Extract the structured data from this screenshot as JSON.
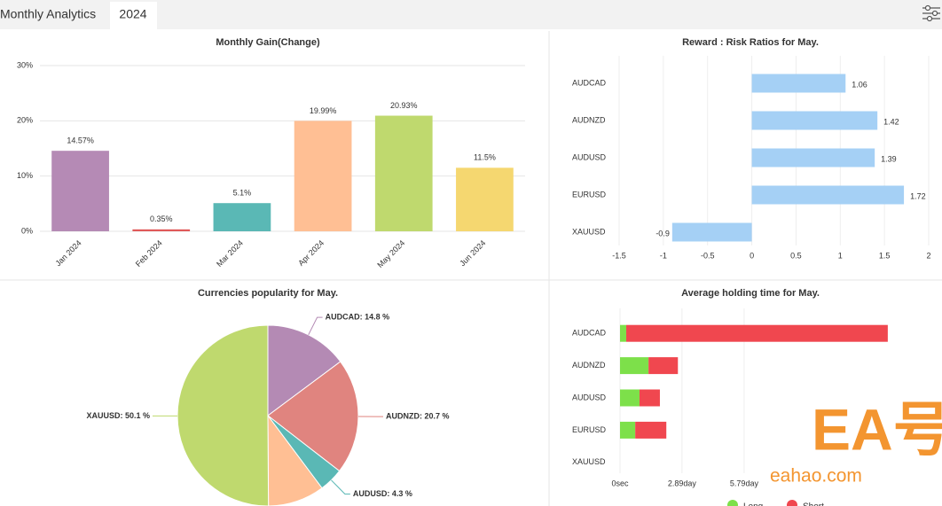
{
  "header": {
    "title": "Monthly Analytics",
    "tab": "2024"
  },
  "watermark": {
    "logo": "EA号",
    "site": "eahao.com"
  },
  "chart_data": [
    {
      "type": "bar",
      "title": "Monthly Gain(Change)",
      "categories": [
        "Jan 2024",
        "Feb 2024",
        "Mar 2024",
        "Apr 2024",
        "May 2024",
        "Jun 2024"
      ],
      "values": [
        14.57,
        0.35,
        5.1,
        19.99,
        20.93,
        11.5
      ],
      "value_labels": [
        "14.57%",
        "0.35%",
        "5.1%",
        "19.99%",
        "20.93%",
        "11.5%"
      ],
      "colors": [
        "#b58ab5",
        "#e05a5a",
        "#5ab8b5",
        "#ffbf94",
        "#bfd96e",
        "#f5d770"
      ],
      "ylim": [
        0,
        30
      ],
      "yticks": [
        {
          "value": 0,
          "label": "0%"
        },
        {
          "value": 10,
          "label": "10%"
        },
        {
          "value": 20,
          "label": "20%"
        },
        {
          "value": 30,
          "label": "30%"
        }
      ],
      "grid": true
    },
    {
      "type": "bar",
      "horizontal": true,
      "title": "Reward : Risk Ratios for May.",
      "categories": [
        "AUDCAD",
        "AUDNZD",
        "AUDUSD",
        "EURUSD",
        "XAUUSD"
      ],
      "values": [
        1.06,
        1.42,
        1.39,
        1.72,
        -0.9
      ],
      "color": "#a5d0f5",
      "xlim": [
        -1.5,
        2
      ],
      "xticks": [
        -1.5,
        -1,
        -0.5,
        0,
        0.5,
        1,
        1.5,
        2
      ],
      "grid": true
    },
    {
      "type": "pie",
      "title": "Currencies popularity for May.",
      "values": [
        14.8,
        20.7,
        4.3,
        10.1,
        50.1
      ],
      "value_labels": [
        "AUDCAD: 14.8 %",
        "AUDNZD: 20.7 %",
        "AUDUSD: 4.3 %",
        null,
        "XAUUSD: 50.1 %"
      ],
      "colors": [
        "#b48ab4",
        "#e0847f",
        "#5ab8b5",
        "#ffbf94",
        "#bfd96e"
      ]
    },
    {
      "type": "bar",
      "horizontal": true,
      "stacked": true,
      "title": "Average holding time for May.",
      "categories": [
        "AUDCAD",
        "AUDNZD",
        "AUDUSD",
        "EURUSD",
        "XAUUSD"
      ],
      "series": [
        {
          "name": "Long",
          "color": "#7de04a",
          "values": [
            0.29,
            1.33,
            0.91,
            0.71,
            null
          ]
        },
        {
          "name": "Short",
          "color": "#f0474f",
          "values": [
            12.2,
            1.37,
            0.95,
            1.45,
            null
          ]
        }
      ],
      "xlim": [
        0,
        14.15
      ],
      "xticks": [
        {
          "value": 0,
          "label": "0sec"
        },
        {
          "value": 2.89,
          "label": "2.89day"
        },
        {
          "value": 5.79,
          "label": "5.79day"
        }
      ],
      "grid": true
    }
  ]
}
